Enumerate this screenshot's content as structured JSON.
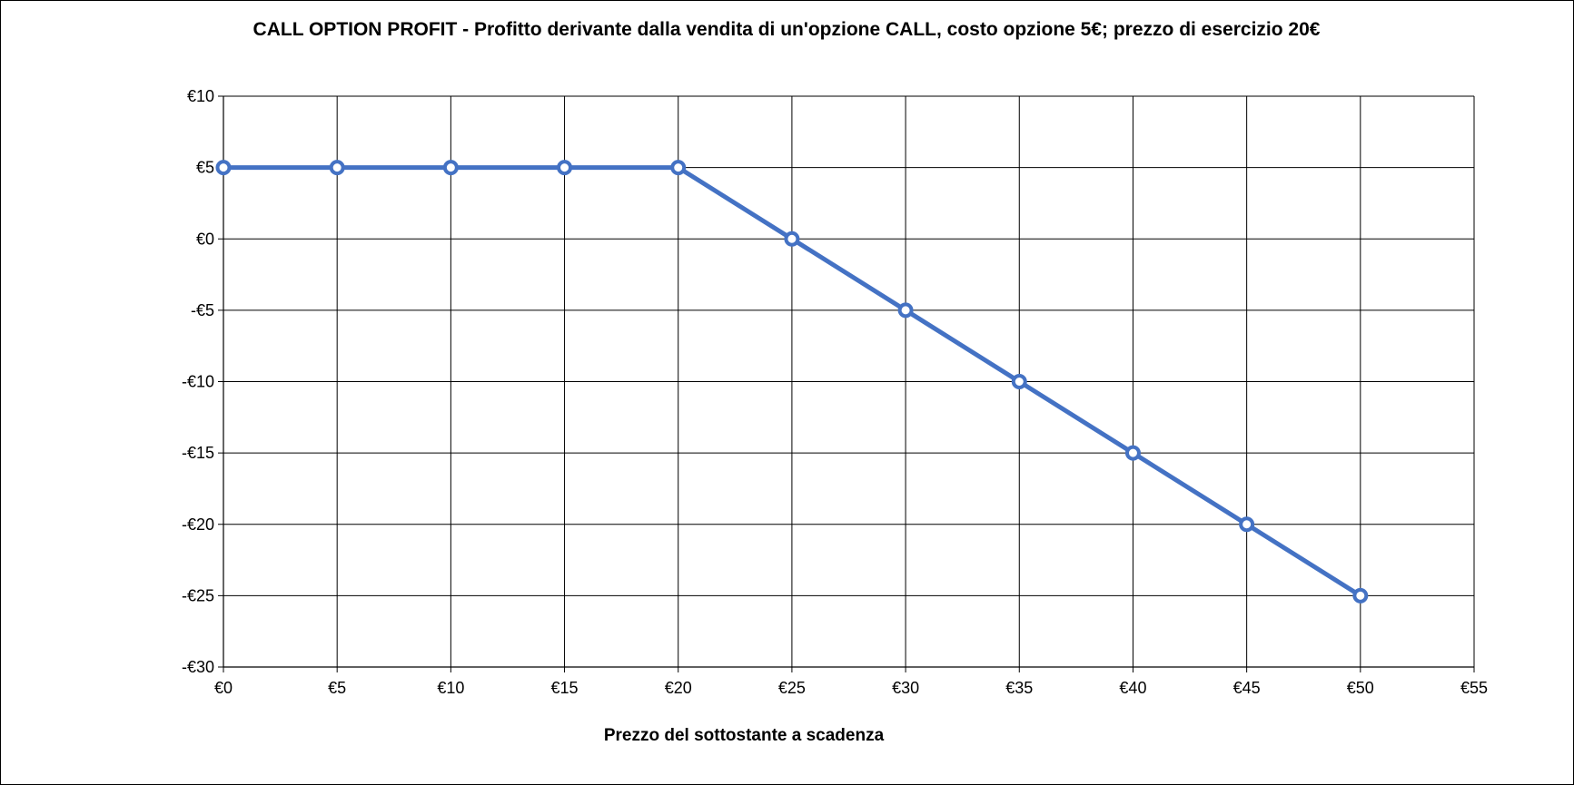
{
  "chart_data": {
    "type": "line",
    "title": "CALL OPTION PROFIT - Profitto derivante dalla vendita di un'opzione CALL, costo opzione 5€; prezzo di esercizio 20€",
    "xlabel": "Prezzo del sottostante a scadenza",
    "ylabel": "",
    "xlim": [
      0,
      55
    ],
    "ylim": [
      -30,
      10
    ],
    "x_ticks": [
      0,
      5,
      10,
      15,
      20,
      25,
      30,
      35,
      40,
      45,
      50,
      55
    ],
    "y_ticks": [
      10,
      5,
      0,
      -5,
      -10,
      -15,
      -20,
      -25,
      -30
    ],
    "x_tick_labels": [
      "€0",
      "€5",
      "€10",
      "€15",
      "€20",
      "€25",
      "€30",
      "€35",
      "€40",
      "€45",
      "€50",
      "€55"
    ],
    "y_tick_labels": [
      "€10",
      "€5",
      "€0",
      "-€5",
      "-€10",
      "-€15",
      "-€20",
      "-€25",
      "-€30"
    ],
    "grid": true,
    "legend": "none",
    "series": [
      {
        "x": [
          0,
          5,
          10,
          15,
          20,
          25,
          30,
          35,
          40,
          45,
          50
        ],
        "values": [
          5,
          5,
          5,
          5,
          5,
          0,
          -5,
          -10,
          -15,
          -20,
          -25
        ],
        "color": "#4472C4",
        "marker": "circle-hollow"
      }
    ]
  }
}
